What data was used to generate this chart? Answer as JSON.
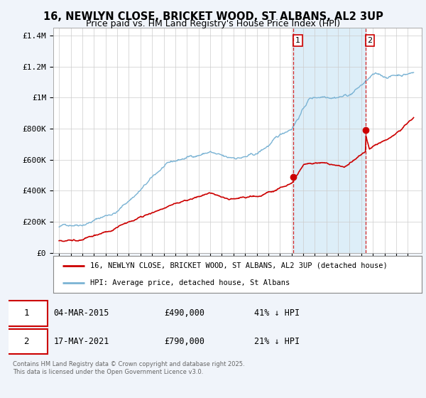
{
  "title_line1": "16, NEWLYN CLOSE, BRICKET WOOD, ST ALBANS, AL2 3UP",
  "title_line2": "Price paid vs. HM Land Registry's House Price Index (HPI)",
  "ylim": [
    0,
    1450000
  ],
  "yticks": [
    0,
    200000,
    400000,
    600000,
    800000,
    1000000,
    1200000,
    1400000
  ],
  "ytick_labels": [
    "£0",
    "£200K",
    "£400K",
    "£600K",
    "£800K",
    "£1M",
    "£1.2M",
    "£1.4M"
  ],
  "hpi_color": "#7ab3d4",
  "price_color": "#cc0000",
  "vline_color": "#cc0000",
  "shade_color": "#ddeef8",
  "vline_1_year": 2015.17,
  "vline_2_year": 2021.37,
  "marker1_year": 2015.17,
  "marker1_value": 490000,
  "marker2_year": 2021.37,
  "marker2_value": 790000,
  "legend_label_price": "16, NEWLYN CLOSE, BRICKET WOOD, ST ALBANS, AL2 3UP (detached house)",
  "legend_label_hpi": "HPI: Average price, detached house, St Albans",
  "table_row1": [
    "1",
    "04-MAR-2015",
    "£490,000",
    "41% ↓ HPI"
  ],
  "table_row2": [
    "2",
    "17-MAY-2021",
    "£790,000",
    "21% ↓ HPI"
  ],
  "footer": "Contains HM Land Registry data © Crown copyright and database right 2025.\nThis data is licensed under the Open Government Licence v3.0.",
  "background_color": "#f0f4fa",
  "plot_bg_color": "#ffffff",
  "grid_color": "#cccccc"
}
